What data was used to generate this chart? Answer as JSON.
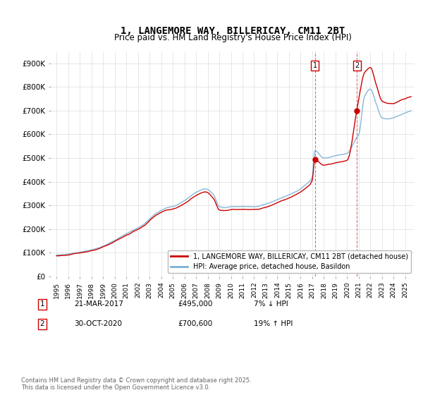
{
  "title": "1, LANGEMORE WAY, BILLERICAY, CM11 2BT",
  "subtitle": "Price paid vs. HM Land Registry's House Price Index (HPI)",
  "ylim": [
    0,
    950000
  ],
  "yticks": [
    0,
    100000,
    200000,
    300000,
    400000,
    500000,
    600000,
    700000,
    800000,
    900000
  ],
  "ytick_labels": [
    "£0",
    "£100K",
    "£200K",
    "£300K",
    "£400K",
    "£500K",
    "£600K",
    "£700K",
    "£800K",
    "£900K"
  ],
  "line1_color": "#cc0000",
  "line2_color": "#7ab0d4",
  "line1_label": "1, LANGEMORE WAY, BILLERICAY, CM11 2BT (detached house)",
  "line2_label": "HPI: Average price, detached house, Basildon",
  "transaction1_date": "21-MAR-2017",
  "transaction1_price": 495000,
  "transaction1_pct": "7% ↓ HPI",
  "transaction2_date": "30-OCT-2020",
  "transaction2_price": 700600,
  "transaction2_pct": "19% ↑ HPI",
  "marker1_x": 2017.22,
  "marker2_x": 2020.83,
  "marker1_y": 495000,
  "marker2_y": 700600,
  "footer": "Contains HM Land Registry data © Crown copyright and database right 2025.\nThis data is licensed under the Open Government Licence v3.0.",
  "background_color": "#ffffff",
  "grid_color": "#dddddd",
  "xlim_left": 1994.5,
  "xlim_right": 2025.8
}
